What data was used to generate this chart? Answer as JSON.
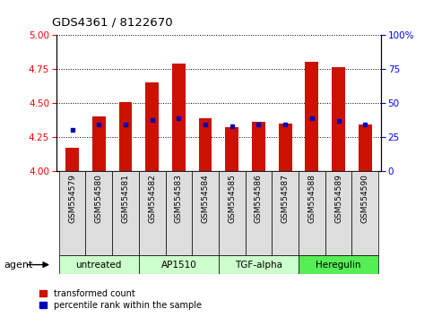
{
  "title": "GDS4361 / 8122670",
  "samples": [
    "GSM554579",
    "GSM554580",
    "GSM554581",
    "GSM554582",
    "GSM554583",
    "GSM554584",
    "GSM554585",
    "GSM554586",
    "GSM554587",
    "GSM554588",
    "GSM554589",
    "GSM554590"
  ],
  "red_values": [
    4.17,
    4.4,
    4.51,
    4.65,
    4.79,
    4.39,
    4.32,
    4.36,
    4.35,
    4.8,
    4.76,
    4.34
  ],
  "blue_dot_positions": [
    4.305,
    4.345,
    4.345,
    4.375,
    4.39,
    4.34,
    4.33,
    4.345,
    4.34,
    4.39,
    4.37,
    4.34
  ],
  "groups": [
    {
      "label": "untreated",
      "start": 0,
      "end": 2
    },
    {
      "label": "AP1510",
      "start": 3,
      "end": 5
    },
    {
      "label": "TGF-alpha",
      "start": 6,
      "end": 8
    },
    {
      "label": "Heregulin",
      "start": 9,
      "end": 11
    }
  ],
  "group_colors": [
    "#CCFFCC",
    "#CCFFCC",
    "#CCFFCC",
    "#55EE55"
  ],
  "ylim_left": [
    4.0,
    5.0
  ],
  "ylim_right": [
    0,
    100
  ],
  "yticks_left": [
    4.0,
    4.25,
    4.5,
    4.75,
    5.0
  ],
  "yticks_right": [
    0,
    25,
    50,
    75,
    100
  ],
  "red_color": "#CC1100",
  "blue_color": "#0000BB",
  "bar_width": 0.5,
  "legend_red": "transformed count",
  "legend_blue": "percentile rank within the sample",
  "agent_label": "agent"
}
